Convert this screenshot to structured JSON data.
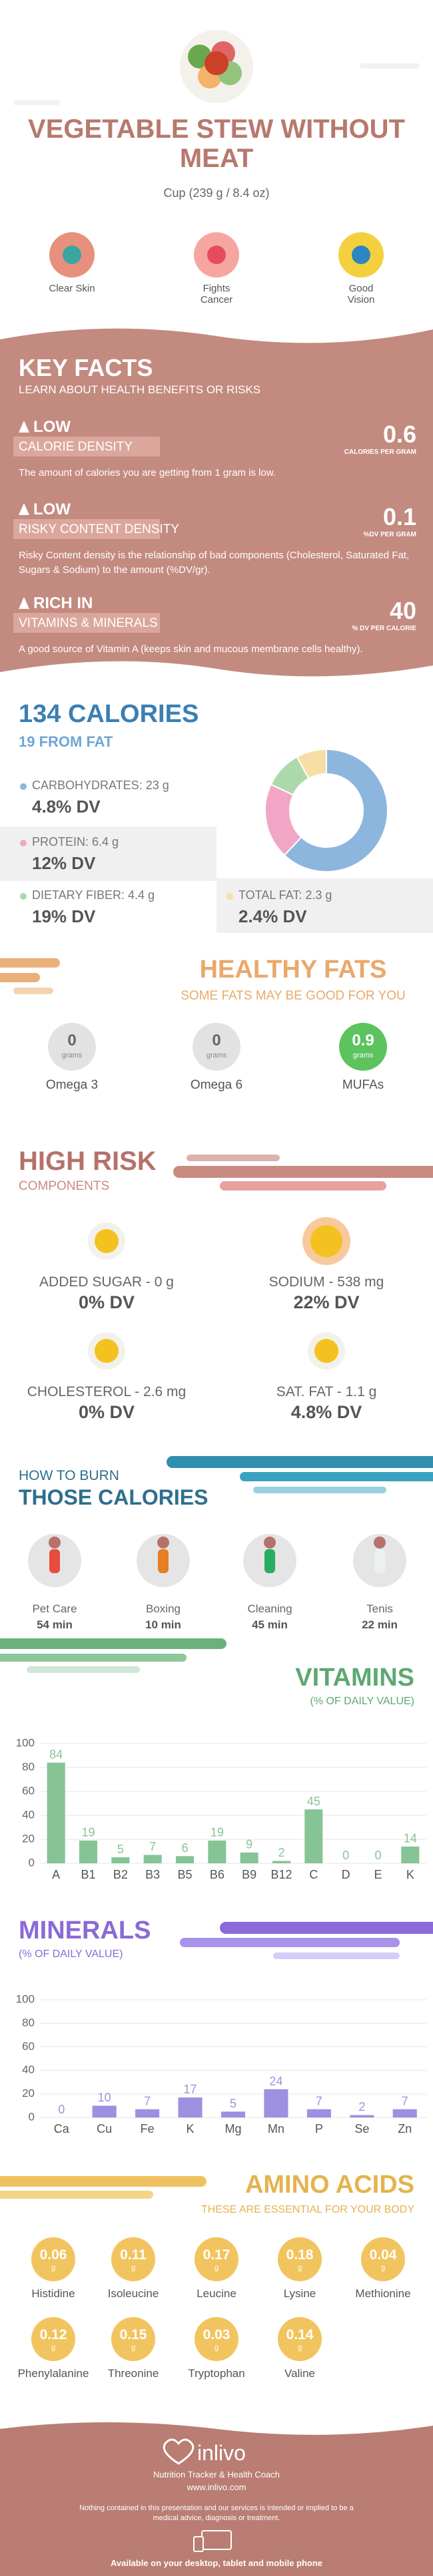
{
  "header": {
    "title": "VEGETABLE STEW WITHOUT MEAT",
    "serving": "Cup (239 g / 8.4 oz)"
  },
  "benefits": [
    "Clear Skin",
    "Fights Cancer",
    "Good Vision"
  ],
  "key_facts": {
    "title": "KEY FACTS",
    "subtitle": "LEARN ABOUT HEALTH BENEFITS OR RISKS",
    "items": [
      {
        "level": "LOW",
        "label": "CALORIE DENSITY",
        "value": 0.6,
        "unit": "CALORIES PER GRAM",
        "description": "The amount of calories you are getting from 1 gram is low."
      },
      {
        "level": "LOW",
        "label": "RISKY CONTENT DENSITY",
        "value": 0.1,
        "unit": "%DV PER GRAM",
        "description": "Risky Content density is the relationship of bad components (Cholesterol, Saturated Fat, Sugars & Sodium) to the amount (%DV/gr)."
      },
      {
        "level": "RICH IN",
        "label": "VITAMINS & MINERALS",
        "value": 40,
        "unit": "% DV PER CALORIE",
        "description": "A good source of Vitamin A (keeps skin and mucous membrane cells healthy)."
      }
    ]
  },
  "calories": {
    "title": "134 CALORIES",
    "subtitle": "19 FROM FAT",
    "nutrients": [
      {
        "name": "CARBOHYDRATES: 23 g",
        "dv": "4.8% DV"
      },
      {
        "name": "PROTEIN: 6.4 g",
        "dv": "12% DV"
      },
      {
        "name": "DIETARY FIBER: 4.4 g",
        "dv": "19% DV"
      },
      {
        "name": "TOTAL FAT: 2.3 g",
        "dv": "2.4% DV"
      }
    ]
  },
  "healthy_fats": {
    "title": "HEALTHY FATS",
    "subtitle": "SOME FATS MAY BE GOOD FOR YOU",
    "items": [
      {
        "name": "Omega 3",
        "value": 0,
        "unit": "grams"
      },
      {
        "name": "Omega 6",
        "value": 0,
        "unit": "grams"
      },
      {
        "name": "MUFAs",
        "value": 0.9,
        "unit": "grams"
      }
    ]
  },
  "high_risk": {
    "title": "HIGH RISK",
    "subtitle": "COMPONENTS",
    "items": [
      {
        "name": "ADDED SUGAR - 0 g",
        "dv": "0% DV"
      },
      {
        "name": "SODIUM - 538 mg",
        "dv": "22% DV"
      },
      {
        "name": "CHOLESTEROL - 2.6 mg",
        "dv": "0% DV"
      },
      {
        "name": "SAT. FAT - 1.1 g",
        "dv": "4.8% DV"
      }
    ]
  },
  "burn": {
    "title": "HOW TO BURN",
    "subtitle": "THOSE CALORIES",
    "activities": [
      {
        "name": "Pet Care",
        "time": "54 min"
      },
      {
        "name": "Boxing",
        "time": "10 min"
      },
      {
        "name": "Cleaning",
        "time": "45 min"
      },
      {
        "name": "Tenis",
        "time": "22 min"
      }
    ]
  },
  "vitamins": {
    "title": "VITAMINS",
    "subtitle": "(% OF DAILY VALUE)"
  },
  "minerals": {
    "title": "MINERALS",
    "subtitle": "(% OF DAILY VALUE)"
  },
  "amino_acids": {
    "title": "AMINO ACIDS",
    "subtitle": "THESE ARE ESSENTIAL FOR YOUR BODY",
    "items": [
      {
        "name": "Histidine",
        "value": 0.06,
        "unit": "g"
      },
      {
        "name": "Isoleucine",
        "value": 0.11,
        "unit": "g"
      },
      {
        "name": "Leucine",
        "value": 0.17,
        "unit": "g"
      },
      {
        "name": "Lysine",
        "value": 0.18,
        "unit": "g"
      },
      {
        "name": "Methionine",
        "value": 0.04,
        "unit": "g"
      },
      {
        "name": "Phenylalanine",
        "value": 0.12,
        "unit": "g"
      },
      {
        "name": "Threonine",
        "value": 0.15,
        "unit": "g"
      },
      {
        "name": "Tryptophan",
        "value": 0.03,
        "unit": "g"
      },
      {
        "name": "Valine",
        "value": 0.14,
        "unit": "g"
      }
    ]
  },
  "footer": {
    "brand": "inlivo",
    "tagline": "Nutrition Tracker & Health Coach",
    "url": "www.inlivo.com",
    "disclaimer": "Nothing contained in this presentation and our services is intended or implied to be a medical advice, diagnosis or treatment.",
    "available": "Available on your desktop, tablet and mobile phone"
  },
  "chart_data": [
    {
      "type": "pie",
      "values": [
        62,
        20,
        10,
        8
      ],
      "colors": [
        "#8db6de",
        "#f2a6c6",
        "#acd9ac",
        "#f6dea6"
      ]
    },
    {
      "type": "bar",
      "categories": [
        "A",
        "B1",
        "B2",
        "B3",
        "B5",
        "B6",
        "B9",
        "B12",
        "C",
        "D",
        "E",
        "K"
      ],
      "values": [
        84,
        19,
        5,
        7,
        6,
        19,
        9,
        2,
        45,
        0,
        0,
        14
      ],
      "color": "#86c496",
      "ylim": [
        0,
        100
      ],
      "yticks": [
        0,
        20,
        40,
        60,
        80,
        100
      ],
      "grid": true
    },
    {
      "type": "bar",
      "categories": [
        "Ca",
        "Cu",
        "Fe",
        "K",
        "Mg",
        "Mn",
        "P",
        "Se",
        "Zn"
      ],
      "values": [
        0,
        10,
        7,
        17,
        5,
        24,
        7,
        2,
        7
      ],
      "color": "#9d90e0",
      "ylim": [
        0,
        100
      ],
      "yticks": [
        0,
        20,
        40,
        60,
        80,
        100
      ],
      "grid": true
    }
  ]
}
